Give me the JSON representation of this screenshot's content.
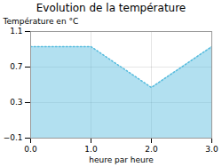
{
  "chart_data": {
    "type": "area",
    "title": "Evolution de la température",
    "xlabel": "heure par heure",
    "ylabel": "Température en °C",
    "x": [
      0,
      1,
      2,
      3
    ],
    "values": [
      0.93,
      0.93,
      0.47,
      0.93
    ],
    "xlim": [
      0,
      3
    ],
    "ylim": [
      -0.1,
      1.1
    ],
    "xticks": [
      0,
      1,
      2,
      3
    ],
    "yticks": [
      -0.1,
      0.3,
      0.7,
      1.1
    ],
    "grid": true,
    "color": "#55bbdd",
    "line_style": "dotted"
  }
}
